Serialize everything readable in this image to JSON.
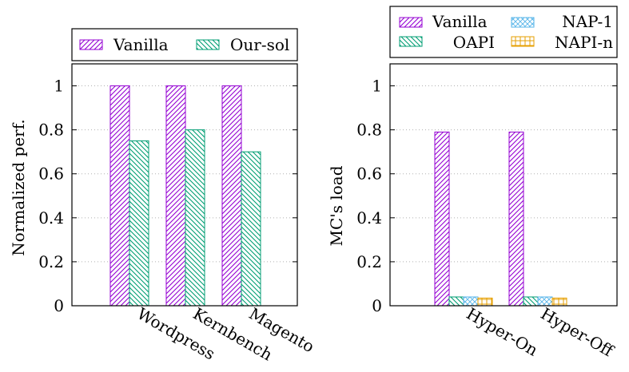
{
  "chart_data": [
    {
      "type": "bar",
      "title": "",
      "xlabel": "",
      "ylabel": "Normalized perf.",
      "ylim": [
        0,
        1.1
      ],
      "yticks": [
        "0",
        "0.2",
        "0.4",
        "0.6",
        "0.8",
        "1"
      ],
      "categories": [
        "Wordpress",
        "Kernbench",
        "Magento"
      ],
      "series": [
        {
          "name": "Vanilla",
          "values": [
            1.0,
            1.0,
            1.0
          ],
          "color": "#9400d3",
          "pattern": "diagonal-up"
        },
        {
          "name": "Our-sol",
          "values": [
            0.75,
            0.8,
            0.7
          ],
          "color": "#009e73",
          "pattern": "diagonal-down"
        }
      ],
      "grid": "y-dotted",
      "legend": "top-boxed"
    },
    {
      "type": "bar",
      "title": "",
      "xlabel": "",
      "ylabel": "MC's load",
      "ylim": [
        0,
        1.1
      ],
      "yticks": [
        "0",
        "0.2",
        "0.4",
        "0.6",
        "0.8",
        "1"
      ],
      "categories": [
        "Hyper-On",
        "Hyper-Off"
      ],
      "series": [
        {
          "name": "Vanilla",
          "values": [
            0.79,
            0.79
          ],
          "color": "#9400d3",
          "pattern": "diagonal-up"
        },
        {
          "name": "OAPI",
          "values": [
            0.04,
            0.04
          ],
          "color": "#009e73",
          "pattern": "diagonal-down"
        },
        {
          "name": "NAP-1",
          "values": [
            0.04,
            0.04
          ],
          "color": "#56b4e9",
          "pattern": "crosshatch-diagonal"
        },
        {
          "name": "NAPI-n",
          "values": [
            0.035,
            0.035
          ],
          "color": "#e69f00",
          "pattern": "grid"
        }
      ],
      "grid": "y-dotted",
      "legend": "top-boxed"
    }
  ]
}
